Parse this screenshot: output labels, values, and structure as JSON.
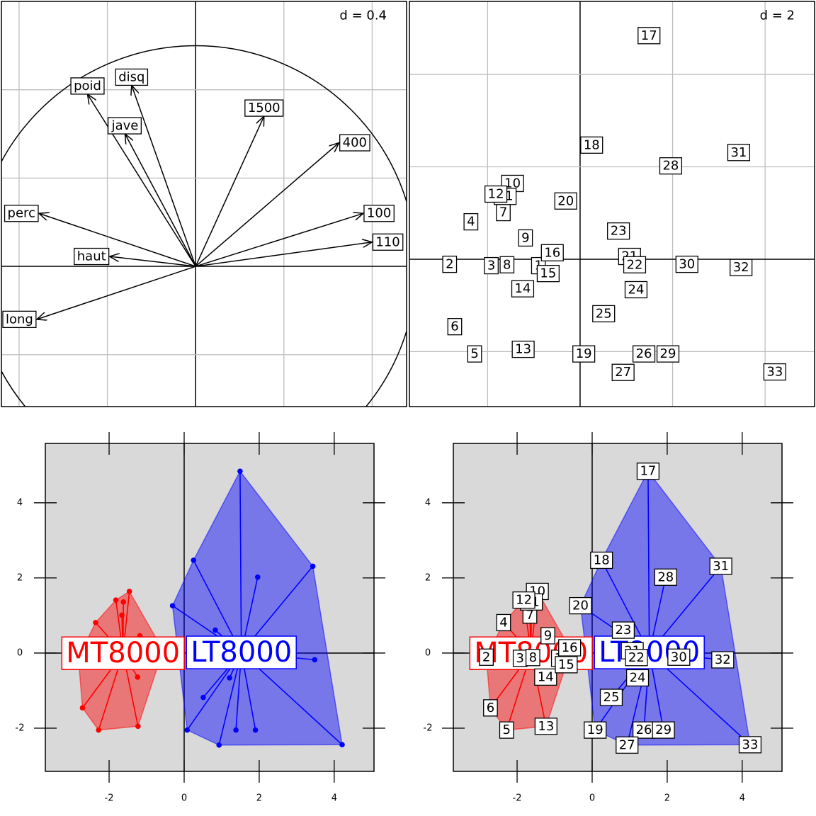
{
  "chart_data": [
    {
      "type": "correlation-circle",
      "annotation": "d = 0.4",
      "variables": [
        "long",
        "perc",
        "haut",
        "poid",
        "disq",
        "jave",
        "100",
        "110",
        "400",
        "1500"
      ],
      "x": [
        -0.72,
        -0.71,
        -0.39,
        -0.49,
        -0.29,
        -0.32,
        0.76,
        0.8,
        0.65,
        0.31
      ],
      "y": [
        -0.24,
        0.24,
        0.045,
        0.78,
        0.82,
        0.6,
        0.24,
        0.11,
        0.56,
        0.68
      ],
      "xlim": [
        -0.88,
        0.956
      ],
      "ylim": [
        -0.635,
        1.2
      ],
      "xticks": [
        -0.8,
        -0.4,
        0,
        0.4,
        0.8
      ],
      "yticks": [
        -0.4,
        0,
        0.4,
        0.8
      ],
      "grid": true
    },
    {
      "type": "label-scatter",
      "annotation": "d = 2",
      "labels": [
        "1",
        "2",
        "3",
        "4",
        "5",
        "6",
        "7",
        "8",
        "9",
        "10",
        "11",
        "12",
        "13",
        "14",
        "15",
        "16",
        "17",
        "18",
        "19",
        "20",
        "21",
        "22",
        "23",
        "24",
        "25",
        "26",
        "27",
        "28",
        "29",
        "30",
        "31",
        "32",
        "33"
      ],
      "x": [
        -0.9,
        -2.82,
        -1.92,
        -2.36,
        -2.28,
        -2.71,
        -1.66,
        -1.58,
        -1.18,
        -1.46,
        -1.62,
        -1.82,
        -1.23,
        -1.24,
        -0.69,
        -0.6,
        1.49,
        0.25,
        0.08,
        -0.31,
        1.07,
        1.18,
        0.83,
        1.21,
        0.51,
        1.38,
        0.93,
        1.96,
        1.9,
        2.31,
        3.43,
        3.48,
        4.21
      ],
      "y": [
        -0.14,
        -0.11,
        -0.14,
        0.81,
        -2.05,
        -1.46,
        1.01,
        -0.12,
        0.46,
        1.64,
        1.36,
        1.41,
        -1.95,
        -0.64,
        -0.31,
        0.14,
        4.84,
        2.47,
        -2.05,
        1.26,
        0.06,
        -0.12,
        0.61,
        -0.66,
        -1.18,
        -2.05,
        -2.45,
        2.02,
        -2.05,
        -0.11,
        2.31,
        -0.18,
        -2.44
      ],
      "xlim": [
        -3.69,
        5.07
      ],
      "ylim": [
        -3.19,
        5.58
      ],
      "xticks": [
        -2,
        0,
        2,
        4
      ],
      "yticks": [
        -2,
        0,
        2,
        4
      ],
      "grid": true
    },
    {
      "type": "class-scatter",
      "classes": [
        "MT8000",
        "LT8000"
      ],
      "colors": [
        "#ff0000",
        "#0000ff"
      ],
      "group": [
        0,
        0,
        0,
        0,
        0,
        0,
        0,
        0,
        0,
        0,
        0,
        0,
        0,
        0,
        0,
        0,
        1,
        1,
        1,
        1,
        1,
        1,
        1,
        1,
        1,
        1,
        1,
        1,
        1,
        1,
        1,
        1,
        1
      ],
      "x": [
        -0.9,
        -2.82,
        -1.92,
        -2.36,
        -2.28,
        -2.71,
        -1.66,
        -1.58,
        -1.18,
        -1.46,
        -1.62,
        -1.82,
        -1.23,
        -1.24,
        -0.69,
        -0.6,
        1.49,
        0.25,
        0.08,
        -0.31,
        1.07,
        1.18,
        0.83,
        1.21,
        0.51,
        1.38,
        0.93,
        1.96,
        1.9,
        2.31,
        3.43,
        3.48,
        4.21
      ],
      "y": [
        -0.14,
        -0.11,
        -0.14,
        0.81,
        -2.05,
        -1.46,
        1.01,
        -0.12,
        0.46,
        1.64,
        1.36,
        1.41,
        -1.95,
        -0.64,
        -0.31,
        0.14,
        4.84,
        2.47,
        -2.05,
        1.26,
        0.06,
        -0.12,
        0.61,
        -0.66,
        -1.18,
        -2.05,
        -2.45,
        2.02,
        -2.05,
        -0.11,
        2.31,
        -0.18,
        -2.44
      ],
      "xlim": [
        -3.7,
        5.06
      ],
      "ylim": [
        -3.15,
        5.58
      ],
      "xticks": [
        -2,
        0,
        2,
        4
      ],
      "yticks": [
        -2,
        0,
        2,
        4
      ],
      "grid": false
    },
    {
      "type": "class-label-scatter",
      "classes": [
        "MT8000",
        "LT8000"
      ],
      "colors": [
        "#ff0000",
        "#0000ff"
      ],
      "labels": [
        "1",
        "2",
        "3",
        "4",
        "5",
        "6",
        "7",
        "8",
        "9",
        "10",
        "11",
        "12",
        "13",
        "14",
        "15",
        "16",
        "17",
        "18",
        "19",
        "20",
        "21",
        "22",
        "23",
        "24",
        "25",
        "26",
        "27",
        "28",
        "29",
        "30",
        "31",
        "32",
        "33"
      ],
      "group": [
        0,
        0,
        0,
        0,
        0,
        0,
        0,
        0,
        0,
        0,
        0,
        0,
        0,
        0,
        0,
        0,
        1,
        1,
        1,
        1,
        1,
        1,
        1,
        1,
        1,
        1,
        1,
        1,
        1,
        1,
        1,
        1,
        1
      ],
      "x": [
        -0.9,
        -2.82,
        -1.92,
        -2.36,
        -2.28,
        -2.71,
        -1.66,
        -1.58,
        -1.18,
        -1.46,
        -1.62,
        -1.82,
        -1.23,
        -1.24,
        -0.69,
        -0.6,
        1.49,
        0.25,
        0.08,
        -0.31,
        1.07,
        1.18,
        0.83,
        1.21,
        0.51,
        1.38,
        0.93,
        1.96,
        1.9,
        2.31,
        3.43,
        3.48,
        4.21
      ],
      "y": [
        -0.14,
        -0.11,
        -0.14,
        0.81,
        -2.05,
        -1.46,
        1.01,
        -0.12,
        0.46,
        1.64,
        1.36,
        1.41,
        -1.95,
        -0.64,
        -0.31,
        0.14,
        4.84,
        2.47,
        -2.05,
        1.26,
        0.06,
        -0.12,
        0.61,
        -0.66,
        -1.18,
        -2.05,
        -2.45,
        2.02,
        -2.05,
        -0.11,
        2.31,
        -0.18,
        -2.44
      ],
      "xlim": [
        -3.7,
        5.06
      ],
      "ylim": [
        -3.15,
        5.58
      ],
      "xticks": [
        -2,
        0,
        2,
        4
      ],
      "yticks": [
        -2,
        0,
        2,
        4
      ],
      "grid": false
    }
  ]
}
